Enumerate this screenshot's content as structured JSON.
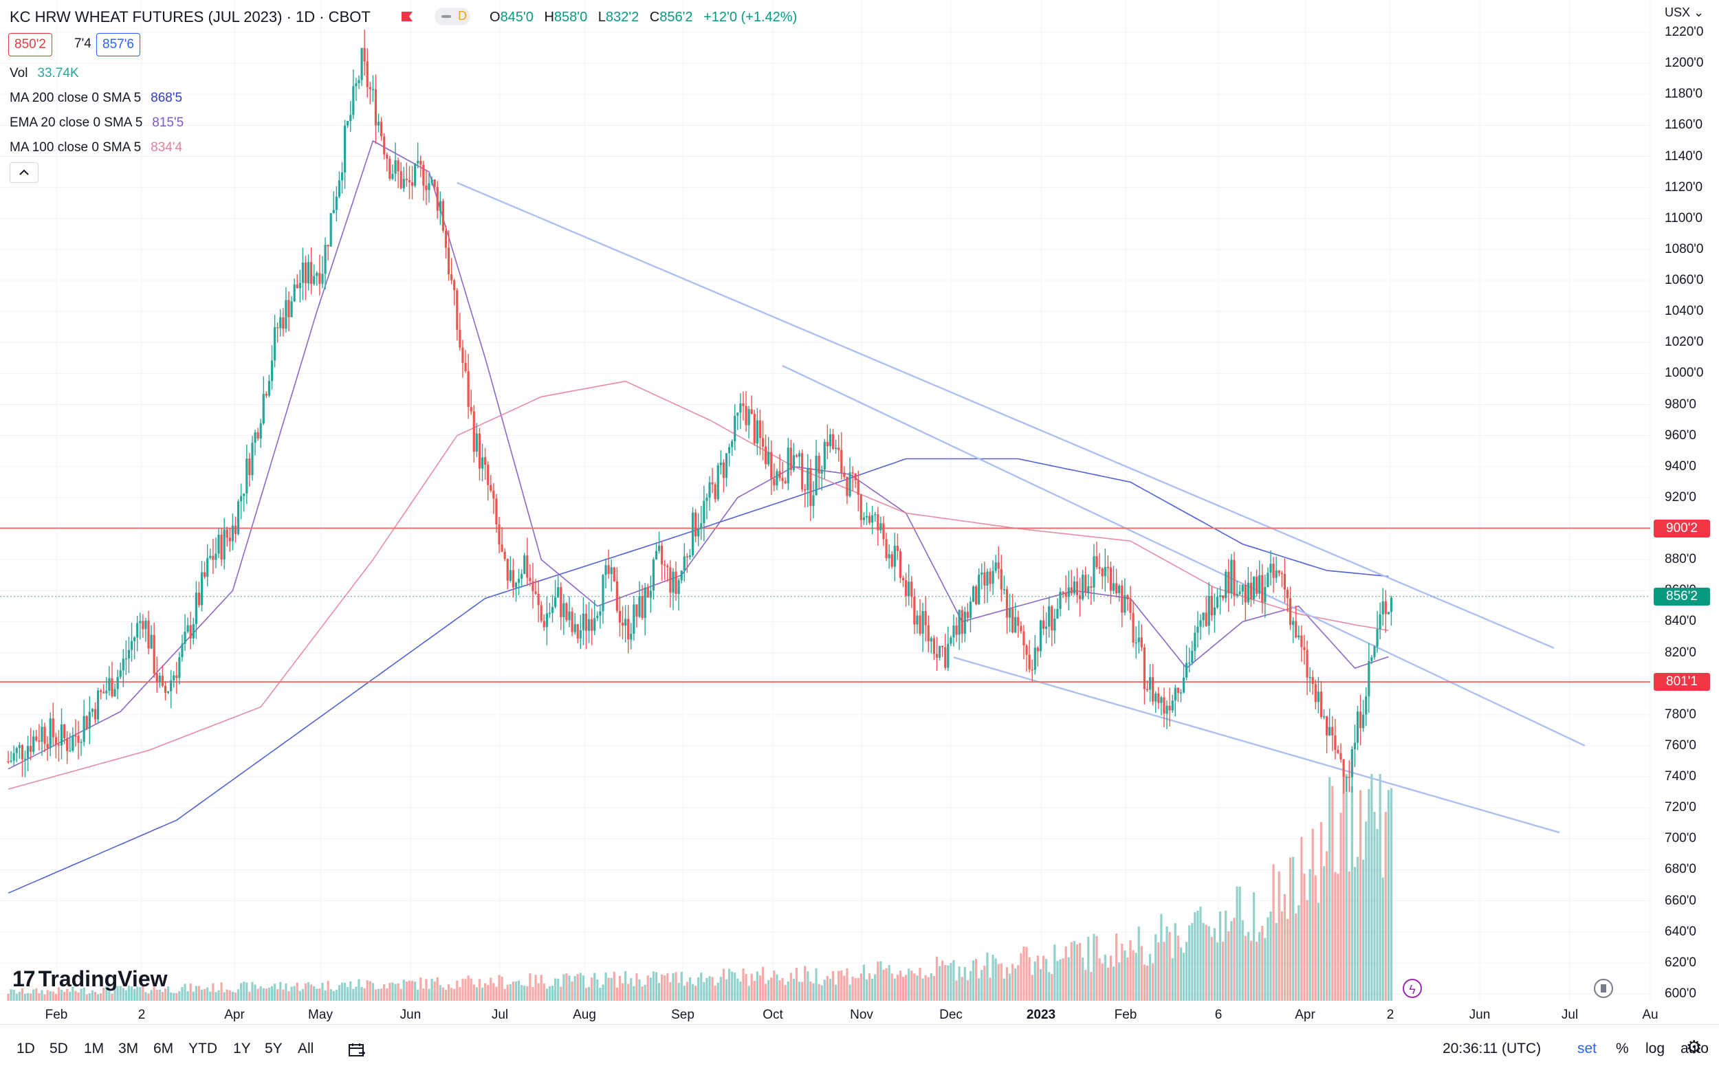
{
  "header": {
    "title": "KC HRW WHEAT FUTURES (JUL 2023) · 1D · CBOT",
    "delay_badge": "D",
    "ohlc": {
      "open_label": "O",
      "open": "845'0",
      "high_label": "H",
      "high": "858'0",
      "low_label": "L",
      "low": "832'2",
      "close_label": "C",
      "close": "856'2",
      "change": "+12'0 (+1.42%)"
    },
    "bid": "850'2",
    "spread": "7'4",
    "ask": "857'6"
  },
  "indicators": [
    {
      "label": "Vol",
      "value": "33.74K",
      "color": "#26a69a"
    },
    {
      "label": "MA 200 close 0 SMA 5",
      "value": "868'5",
      "color": "#2f3cc1"
    },
    {
      "label": "EMA 20 close 0 SMA 5",
      "value": "815'5",
      "color": "#7e57c2"
    },
    {
      "label": "MA 100 close 0 SMA 5",
      "value": "834'4",
      "color": "#e57f9a"
    }
  ],
  "price_axis": {
    "currency": "USX",
    "ticks": [
      "1220'0",
      "1200'0",
      "1180'0",
      "1160'0",
      "1140'0",
      "1120'0",
      "1100'0",
      "1080'0",
      "1060'0",
      "1040'0",
      "1020'0",
      "1000'0",
      "980'0",
      "960'0",
      "940'0",
      "920'0",
      "900'0",
      "880'0",
      "860'0",
      "840'0",
      "820'0",
      "800'0",
      "780'0",
      "760'0",
      "740'0",
      "720'0",
      "700'0",
      "680'0",
      "660'0",
      "640'0",
      "620'0",
      "600'0"
    ],
    "tags": [
      {
        "label": "900'2",
        "value": 900.25,
        "color": "#f23645"
      },
      {
        "label": "856'2",
        "value": 856.25,
        "color": "#089981"
      },
      {
        "label": "801'1",
        "value": 801.125,
        "color": "#f23645"
      }
    ]
  },
  "time_axis": {
    "labels": [
      {
        "text": "Feb",
        "bold": false
      },
      {
        "text": "2",
        "bold": false
      },
      {
        "text": "Apr",
        "bold": false
      },
      {
        "text": "May",
        "bold": false
      },
      {
        "text": "Jun",
        "bold": false
      },
      {
        "text": "Jul",
        "bold": false
      },
      {
        "text": "Aug",
        "bold": false
      },
      {
        "text": "Sep",
        "bold": false
      },
      {
        "text": "Oct",
        "bold": false
      },
      {
        "text": "Nov",
        "bold": false
      },
      {
        "text": "Dec",
        "bold": false
      },
      {
        "text": "2023",
        "bold": true
      },
      {
        "text": "Feb",
        "bold": false
      },
      {
        "text": "6",
        "bold": false
      },
      {
        "text": "Apr",
        "bold": false
      },
      {
        "text": "2",
        "bold": false
      },
      {
        "text": "Jun",
        "bold": false
      },
      {
        "text": "Jul",
        "bold": false
      },
      {
        "text": "Au",
        "bold": false
      }
    ]
  },
  "bottom_bar": {
    "ranges": [
      "1D",
      "5D",
      "1M",
      "3M",
      "6M",
      "YTD",
      "1Y",
      "5Y",
      "All"
    ],
    "clock": "20:36:11 (UTC)",
    "options": {
      "session": "set",
      "percent": "%",
      "log": "log",
      "auto": "auto"
    }
  },
  "branding": {
    "logo_text": "TradingView",
    "logo_mark": "17"
  },
  "chart_data": {
    "type": "candlestick",
    "symbol": "KC HRW WHEAT FUTURES (JUL 2023)",
    "interval": "1D",
    "exchange": "CBOT",
    "ylim": [
      600,
      1225
    ],
    "up_color": "#26a69a",
    "down_color": "#ef5350",
    "horizontal_levels": [
      900.25,
      801.125
    ],
    "last_price": 856.25,
    "price_path": [
      [
        0,
        750
      ],
      [
        12,
        770
      ],
      [
        22,
        762
      ],
      [
        33,
        792
      ],
      [
        40,
        808
      ],
      [
        48,
        845
      ],
      [
        55,
        790
      ],
      [
        63,
        825
      ],
      [
        72,
        880
      ],
      [
        80,
        900
      ],
      [
        88,
        960
      ],
      [
        96,
        1030
      ],
      [
        104,
        1060
      ],
      [
        112,
        1070
      ],
      [
        120,
        1150
      ],
      [
        126,
        1200
      ],
      [
        131,
        1170
      ],
      [
        136,
        1135
      ],
      [
        142,
        1120
      ],
      [
        148,
        1130
      ],
      [
        154,
        1110
      ],
      [
        160,
        1030
      ],
      [
        166,
        960
      ],
      [
        172,
        920
      ],
      [
        178,
        860
      ],
      [
        184,
        880
      ],
      [
        190,
        840
      ],
      [
        196,
        855
      ],
      [
        202,
        830
      ],
      [
        208,
        845
      ],
      [
        214,
        870
      ],
      [
        220,
        835
      ],
      [
        226,
        850
      ],
      [
        232,
        880
      ],
      [
        238,
        860
      ],
      [
        244,
        900
      ],
      [
        250,
        920
      ],
      [
        256,
        945
      ],
      [
        262,
        980
      ],
      [
        268,
        955
      ],
      [
        274,
        935
      ],
      [
        280,
        945
      ],
      [
        286,
        925
      ],
      [
        292,
        960
      ],
      [
        298,
        935
      ],
      [
        304,
        915
      ],
      [
        310,
        900
      ],
      [
        316,
        880
      ],
      [
        322,
        850
      ],
      [
        328,
        830
      ],
      [
        334,
        820
      ],
      [
        340,
        840
      ],
      [
        346,
        860
      ],
      [
        352,
        870
      ],
      [
        358,
        840
      ],
      [
        364,
        815
      ],
      [
        370,
        840
      ],
      [
        376,
        850
      ],
      [
        382,
        862
      ],
      [
        388,
        875
      ],
      [
        394,
        870
      ],
      [
        400,
        840
      ],
      [
        406,
        800
      ],
      [
        412,
        785
      ],
      [
        418,
        805
      ],
      [
        424,
        830
      ],
      [
        430,
        860
      ],
      [
        436,
        870
      ],
      [
        442,
        855
      ],
      [
        448,
        865
      ],
      [
        454,
        870
      ],
      [
        460,
        825
      ],
      [
        466,
        790
      ],
      [
        472,
        760
      ],
      [
        478,
        745
      ],
      [
        484,
        800
      ],
      [
        490,
        848
      ],
      [
        493,
        856
      ]
    ],
    "volume_path": [
      [
        0,
        2
      ],
      [
        150,
        4
      ],
      [
        300,
        6
      ],
      [
        350,
        8
      ],
      [
        400,
        12
      ],
      [
        420,
        16
      ],
      [
        440,
        20
      ],
      [
        460,
        26
      ],
      [
        470,
        36
      ],
      [
        480,
        48
      ],
      [
        490,
        44
      ],
      [
        493,
        38
      ]
    ],
    "moving_averages": [
      {
        "name": "MA 200",
        "color": "#3f4fd6",
        "path": [
          [
            0,
            665
          ],
          [
            60,
            712
          ],
          [
            120,
            790
          ],
          [
            170,
            855
          ],
          [
            230,
            890
          ],
          [
            280,
            920
          ],
          [
            320,
            945
          ],
          [
            360,
            945
          ],
          [
            400,
            930
          ],
          [
            440,
            890
          ],
          [
            470,
            873
          ],
          [
            493,
            869
          ]
        ]
      },
      {
        "name": "EMA 20",
        "color": "#7e57c2",
        "path": [
          [
            0,
            745
          ],
          [
            40,
            782
          ],
          [
            80,
            860
          ],
          [
            110,
            1040
          ],
          [
            130,
            1150
          ],
          [
            150,
            1130
          ],
          [
            170,
            1010
          ],
          [
            190,
            880
          ],
          [
            210,
            850
          ],
          [
            240,
            870
          ],
          [
            260,
            920
          ],
          [
            280,
            940
          ],
          [
            300,
            935
          ],
          [
            320,
            910
          ],
          [
            340,
            840
          ],
          [
            360,
            850
          ],
          [
            380,
            860
          ],
          [
            400,
            855
          ],
          [
            420,
            810
          ],
          [
            440,
            840
          ],
          [
            460,
            850
          ],
          [
            480,
            810
          ],
          [
            493,
            818
          ]
        ]
      },
      {
        "name": "MA 100",
        "color": "#e57f9a",
        "path": [
          [
            0,
            732
          ],
          [
            50,
            757
          ],
          [
            90,
            785
          ],
          [
            130,
            880
          ],
          [
            160,
            960
          ],
          [
            190,
            985
          ],
          [
            220,
            995
          ],
          [
            250,
            970
          ],
          [
            280,
            940
          ],
          [
            320,
            910
          ],
          [
            360,
            900
          ],
          [
            400,
            892
          ],
          [
            430,
            862
          ],
          [
            460,
            845
          ],
          [
            480,
            838
          ],
          [
            493,
            834
          ]
        ]
      }
    ],
    "trendlines": [
      {
        "color": "#aebff2",
        "from": [
          160,
          1123
        ],
        "to": [
          551,
          823
        ]
      },
      {
        "color": "#aebff2",
        "from": [
          276,
          1005
        ],
        "to": [
          562,
          760
        ]
      },
      {
        "color": "#aebff2",
        "from": [
          337,
          817
        ],
        "to": [
          553,
          704
        ]
      }
    ]
  }
}
